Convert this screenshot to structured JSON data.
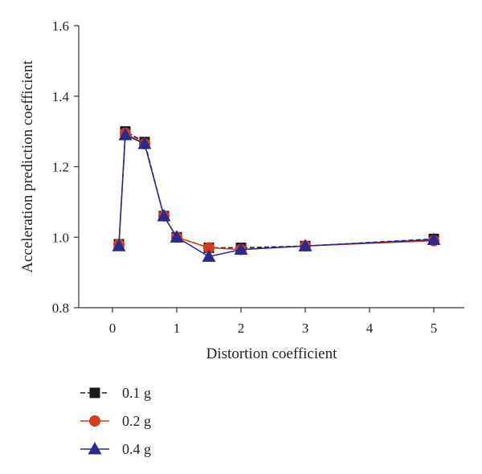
{
  "chart_data": {
    "type": "line",
    "xlabel": "Distortion coefficient",
    "ylabel": "Acceleration prediction coefficient",
    "x_tick_labels": [
      "0",
      "1",
      "2",
      "3",
      "4",
      "5"
    ],
    "x_positions": [
      0.1,
      0.2,
      0.5,
      0.8,
      1,
      1.5,
      2,
      3,
      5
    ],
    "y_ticks": [
      "0.8",
      "1.0",
      "1.2",
      "1.4",
      "1.6"
    ],
    "ylim": [
      0.8,
      1.6
    ],
    "grid": false,
    "legend_position": "bottom-left",
    "series": [
      {
        "name": "0.1 g",
        "color": "#1a1a1a",
        "marker": "square",
        "dash": true,
        "values": [
          0.98,
          1.3,
          1.27,
          1.06,
          1.0,
          0.97,
          0.97,
          0.975,
          0.995
        ]
      },
      {
        "name": "0.2 g",
        "color": "#d63a1f",
        "marker": "circle",
        "dash": false,
        "values": [
          0.98,
          1.295,
          1.265,
          1.06,
          1.0,
          0.97,
          0.965,
          0.975,
          0.99
        ]
      },
      {
        "name": "0.4 g",
        "color": "#2b2a8c",
        "marker": "triangle",
        "dash": false,
        "values": [
          0.975,
          1.29,
          1.265,
          1.06,
          1.0,
          0.945,
          0.965,
          0.975,
          0.993
        ]
      }
    ]
  }
}
